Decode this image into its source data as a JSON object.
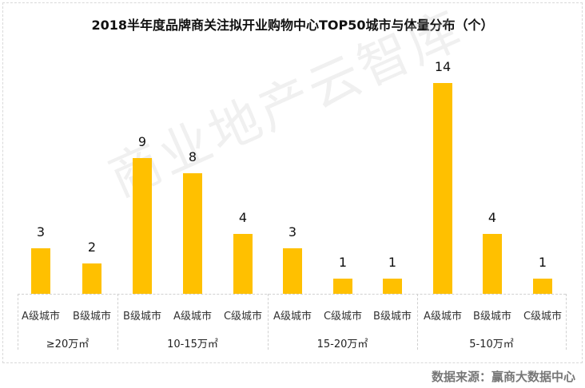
{
  "title": "2018半年度品牌商关注拟开业购物中心TOP50城市与体量分布（个）",
  "watermark": "商业地产云智库",
  "source": "数据来源：赢商大数据中心",
  "colors": {
    "bar": "#FFC000",
    "text": "#111111",
    "source": "#777777"
  },
  "chart_data": {
    "type": "bar",
    "title": "2018半年度品牌商关注拟开业购物中心TOP50城市与体量分布（个）",
    "xlabel": "",
    "ylabel": "",
    "ylim": [
      0,
      14
    ],
    "grid": false,
    "legend": null,
    "groups": [
      {
        "label": "≥20万㎡",
        "categories": [
          "A级城市",
          "B级城市"
        ],
        "values": [
          3,
          2
        ]
      },
      {
        "label": "10-15万㎡",
        "categories": [
          "B级城市",
          "A级城市",
          "C级城市"
        ],
        "values": [
          9,
          8,
          4
        ]
      },
      {
        "label": "15-20万㎡",
        "categories": [
          "A级城市",
          "C级城市",
          "B级城市"
        ],
        "values": [
          3,
          1,
          1
        ]
      },
      {
        "label": "5-10万㎡",
        "categories": [
          "A级城市",
          "B级城市",
          "C级城市"
        ],
        "values": [
          14,
          4,
          1
        ]
      }
    ],
    "categories": [
      "A级城市",
      "B级城市",
      "B级城市",
      "A级城市",
      "C级城市",
      "A级城市",
      "C级城市",
      "B级城市",
      "A级城市",
      "B级城市",
      "C级城市"
    ],
    "values": [
      3,
      2,
      9,
      8,
      4,
      3,
      1,
      1,
      14,
      4,
      1
    ]
  },
  "bars": [
    {
      "label": "3",
      "cat": "A级城市"
    },
    {
      "label": "2",
      "cat": "B级城市"
    },
    {
      "label": "9",
      "cat": "B级城市"
    },
    {
      "label": "8",
      "cat": "A级城市"
    },
    {
      "label": "4",
      "cat": "C级城市"
    },
    {
      "label": "3",
      "cat": "A级城市"
    },
    {
      "label": "1",
      "cat": "C级城市"
    },
    {
      "label": "1",
      "cat": "B级城市"
    },
    {
      "label": "14",
      "cat": "A级城市"
    },
    {
      "label": "4",
      "cat": "B级城市"
    },
    {
      "label": "1",
      "cat": "C级城市"
    }
  ],
  "group_labels": [
    "≥20万㎡",
    "10-15万㎡",
    "15-20万㎡",
    "5-10万㎡"
  ]
}
